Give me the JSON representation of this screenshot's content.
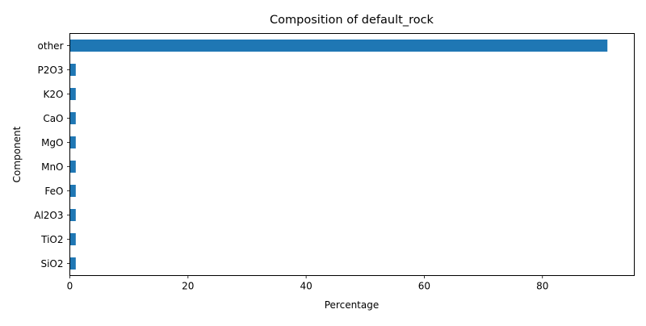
{
  "chart_data": {
    "type": "bar",
    "orientation": "horizontal",
    "title": "Composition of default_rock",
    "xlabel": "Percentage",
    "ylabel": "Component",
    "categories": [
      "SiO2",
      "TiO2",
      "Al2O3",
      "FeO",
      "MnO",
      "MgO",
      "CaO",
      "K2O",
      "P2O3",
      "other"
    ],
    "values": [
      1,
      1,
      1,
      1,
      1,
      1,
      1,
      1,
      1,
      91
    ],
    "xlim": [
      0,
      95.55
    ],
    "xticks": [
      0,
      20,
      40,
      60,
      80
    ],
    "grid": false,
    "legend": "none",
    "bar_color": "#1f77b4"
  }
}
